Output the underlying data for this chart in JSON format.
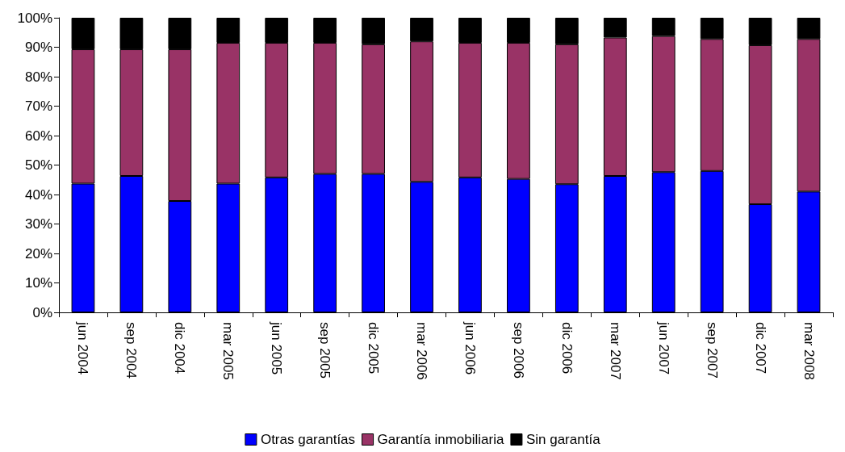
{
  "chart_data": {
    "type": "bar",
    "stacked": true,
    "categories": [
      "jun 2004",
      "sep 2004",
      "dic 2004",
      "mar 2005",
      "jun 2005",
      "sep 2005",
      "dic 2005",
      "mar 2006",
      "jun 2006",
      "sep 2006",
      "dic 2006",
      "mar 2007",
      "jun 2007",
      "sep 2007",
      "dic 2007",
      "mar 2008"
    ],
    "series": [
      {
        "name": "Otras garantías",
        "color": "#0000ff",
        "values": [
          43.7,
          46.3,
          37.8,
          43.7,
          45.8,
          47.0,
          47.0,
          44.3,
          45.8,
          45.3,
          43.5,
          46.3,
          47.6,
          48.0,
          36.7,
          41.0
        ]
      },
      {
        "name": "Garantía inmobiliaria",
        "color": "#993366",
        "values": [
          45.6,
          43.0,
          51.5,
          47.8,
          45.7,
          44.5,
          44.0,
          47.7,
          45.7,
          46.2,
          47.5,
          47.0,
          46.2,
          44.8,
          54.0,
          51.8
        ]
      },
      {
        "name": "Sin garantía",
        "color": "#000000",
        "values": [
          10.7,
          10.7,
          10.7,
          8.5,
          8.5,
          8.5,
          9.0,
          8.0,
          8.5,
          8.5,
          9.0,
          6.7,
          6.2,
          7.2,
          9.3,
          7.2
        ]
      }
    ],
    "ylim": [
      0,
      100
    ],
    "yticks": [
      {
        "value": 0,
        "label": "0%"
      },
      {
        "value": 10,
        "label": "10%"
      },
      {
        "value": 20,
        "label": "20%"
      },
      {
        "value": 30,
        "label": "30%"
      },
      {
        "value": 40,
        "label": "40%"
      },
      {
        "value": 50,
        "label": "50%"
      },
      {
        "value": 60,
        "label": "60%"
      },
      {
        "value": 70,
        "label": "70%"
      },
      {
        "value": 80,
        "label": "80%"
      },
      {
        "value": 90,
        "label": "90%"
      },
      {
        "value": 100,
        "label": "100%"
      }
    ],
    "legend": "bottom"
  }
}
